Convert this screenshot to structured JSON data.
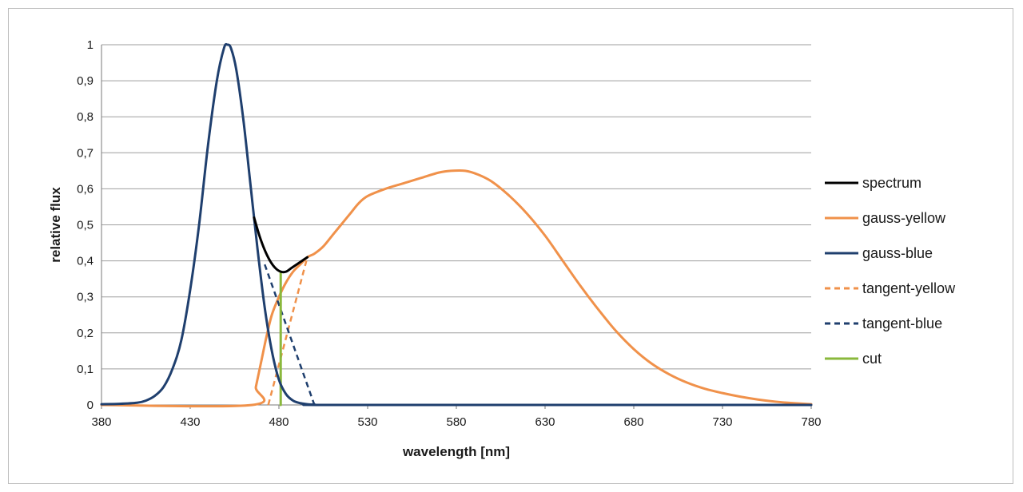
{
  "chart_data": {
    "type": "line",
    "xlabel": "wavelength [nm]",
    "ylabel": "relative flux",
    "xlim": [
      380,
      780
    ],
    "ylim": [
      0,
      1
    ],
    "x_ticks": [
      380,
      430,
      480,
      530,
      580,
      630,
      680,
      730,
      780
    ],
    "x_tick_labels": [
      "380",
      "430",
      "480",
      "530",
      "580",
      "630",
      "680",
      "730",
      "780"
    ],
    "y_ticks": [
      0,
      0.1,
      0.2,
      0.3,
      0.4,
      0.5,
      0.6,
      0.7,
      0.8,
      0.9,
      1
    ],
    "y_tick_labels": [
      "0",
      "0,1",
      "0,2",
      "0,3",
      "0,4",
      "0,5",
      "0,6",
      "0,7",
      "0,8",
      "0,9",
      "1"
    ],
    "grid": "horizontal",
    "legend_position": "right",
    "series": [
      {
        "name": "spectrum",
        "color": "#000000",
        "dash": "solid",
        "points": [
          [
            466,
            0.52
          ],
          [
            469,
            0.47
          ],
          [
            472,
            0.43
          ],
          [
            475,
            0.4
          ],
          [
            478,
            0.38
          ],
          [
            481,
            0.37
          ],
          [
            484,
            0.37
          ],
          [
            487,
            0.38
          ],
          [
            490,
            0.39
          ],
          [
            493,
            0.4
          ],
          [
            496,
            0.41
          ]
        ]
      },
      {
        "name": "gauss-yellow",
        "color": "#f0914a",
        "dash": "solid",
        "points": [
          [
            380,
            0
          ],
          [
            465,
            0
          ],
          [
            467,
            0.05
          ],
          [
            470,
            0.12
          ],
          [
            473,
            0.19
          ],
          [
            476,
            0.25
          ],
          [
            480,
            0.3
          ],
          [
            484,
            0.34
          ],
          [
            488,
            0.37
          ],
          [
            492,
            0.39
          ],
          [
            496,
            0.41
          ],
          [
            500,
            0.42
          ],
          [
            505,
            0.44
          ],
          [
            510,
            0.47
          ],
          [
            515,
            0.5
          ],
          [
            520,
            0.53
          ],
          [
            525,
            0.56
          ],
          [
            530,
            0.58
          ],
          [
            540,
            0.6
          ],
          [
            550,
            0.615
          ],
          [
            560,
            0.63
          ],
          [
            570,
            0.645
          ],
          [
            577,
            0.65
          ],
          [
            585,
            0.65
          ],
          [
            592,
            0.64
          ],
          [
            600,
            0.62
          ],
          [
            610,
            0.58
          ],
          [
            620,
            0.53
          ],
          [
            630,
            0.47
          ],
          [
            640,
            0.4
          ],
          [
            650,
            0.33
          ],
          [
            660,
            0.265
          ],
          [
            670,
            0.205
          ],
          [
            680,
            0.155
          ],
          [
            690,
            0.115
          ],
          [
            700,
            0.085
          ],
          [
            710,
            0.062
          ],
          [
            720,
            0.045
          ],
          [
            730,
            0.033
          ],
          [
            740,
            0.023
          ],
          [
            750,
            0.015
          ],
          [
            760,
            0.009
          ],
          [
            770,
            0.005
          ],
          [
            780,
            0.002
          ]
        ]
      },
      {
        "name": "gauss-blue",
        "color": "#1f3f6e",
        "dash": "solid",
        "points": [
          [
            380,
            0.002
          ],
          [
            390,
            0.003
          ],
          [
            400,
            0.006
          ],
          [
            405,
            0.012
          ],
          [
            410,
            0.025
          ],
          [
            415,
            0.05
          ],
          [
            420,
            0.1
          ],
          [
            425,
            0.18
          ],
          [
            430,
            0.32
          ],
          [
            435,
            0.5
          ],
          [
            440,
            0.72
          ],
          [
            445,
            0.9
          ],
          [
            449,
            0.99
          ],
          [
            451,
            1.0
          ],
          [
            453,
            0.99
          ],
          [
            456,
            0.93
          ],
          [
            460,
            0.79
          ],
          [
            464,
            0.61
          ],
          [
            468,
            0.43
          ],
          [
            472,
            0.27
          ],
          [
            476,
            0.15
          ],
          [
            480,
            0.07
          ],
          [
            484,
            0.03
          ],
          [
            488,
            0.012
          ],
          [
            492,
            0.005
          ],
          [
            496,
            0.002
          ],
          [
            500,
            0.001
          ],
          [
            520,
            0
          ],
          [
            780,
            0
          ]
        ]
      },
      {
        "name": "tangent-yellow",
        "color": "#f0914a",
        "dash": "dashed",
        "points": [
          [
            474,
            0
          ],
          [
            496,
            0.41
          ]
        ]
      },
      {
        "name": "tangent-blue",
        "color": "#1f3f6e",
        "dash": "dashed",
        "points": [
          [
            472,
            0.39
          ],
          [
            500,
            0
          ]
        ]
      },
      {
        "name": "cut",
        "color": "#8ab83c",
        "dash": "solid",
        "points": [
          [
            481,
            0
          ],
          [
            481,
            0.37
          ]
        ]
      }
    ]
  }
}
